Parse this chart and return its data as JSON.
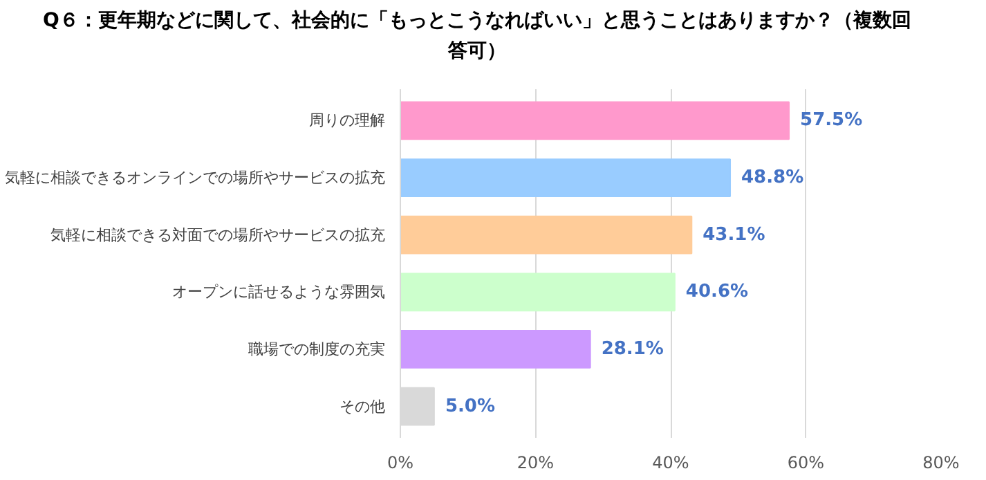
{
  "chart_data": {
    "type": "bar",
    "orientation": "horizontal",
    "title": "Q６：更年期などに関して、社会的に「もっとこうなればいい」と思うことはありますか？（複数回答可）",
    "categories": [
      "周りの理解",
      "気軽に相談できるオンラインでの場所やサービスの拡充",
      "気軽に相談できる対面での場所やサービスの拡充",
      "オープンに話せるような雰囲気",
      "職場での制度の充実",
      "その他"
    ],
    "values": [
      57.5,
      48.8,
      43.1,
      40.6,
      28.1,
      5.0
    ],
    "colors": [
      "#ff99cc",
      "#99ccff",
      "#ffcc99",
      "#ccffcc",
      "#cc99ff",
      "#d9d9d9"
    ],
    "value_labels": [
      "57.5%",
      "48.8%",
      "43.1%",
      "40.6%",
      "28.1%",
      "5.0%"
    ],
    "xlim": [
      0,
      80
    ],
    "xticks": [
      {
        "value": 0,
        "label": "0%"
      },
      {
        "value": 20,
        "label": "20%"
      },
      {
        "value": 40,
        "label": "40%"
      },
      {
        "value": 60,
        "label": "60%"
      },
      {
        "value": 80,
        "label": "80%"
      }
    ],
    "grid": "x"
  }
}
